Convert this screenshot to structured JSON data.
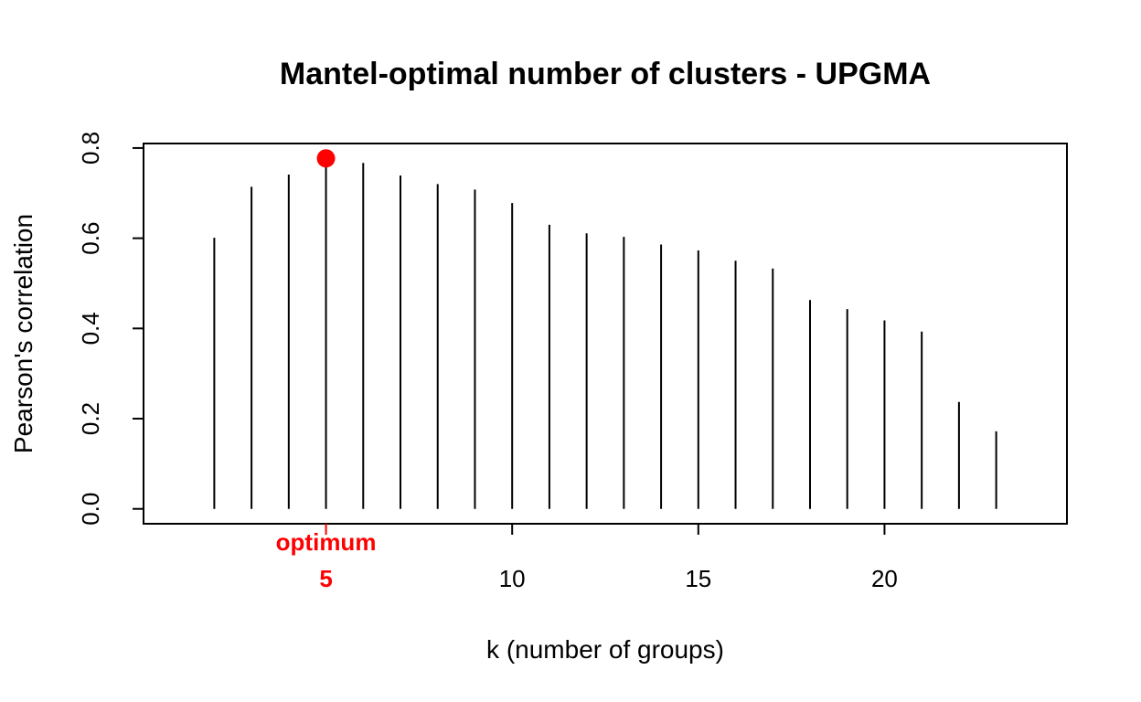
{
  "chart_data": {
    "type": "bar",
    "style": "vertical lines (histogram-type)",
    "title": "Mantel-optimal number of clusters - UPGMA",
    "xlabel": "k (number of groups)",
    "ylabel": "Pearson's correlation",
    "x": [
      1,
      2,
      3,
      4,
      5,
      6,
      7,
      8,
      9,
      10,
      11,
      12,
      13,
      14,
      15,
      16,
      17,
      18,
      19,
      20,
      21,
      22,
      23,
      24
    ],
    "values": [
      0.0,
      0.601,
      0.714,
      0.741,
      0.777,
      0.767,
      0.739,
      0.72,
      0.708,
      0.678,
      0.63,
      0.611,
      0.603,
      0.586,
      0.573,
      0.55,
      0.533,
      0.463,
      0.443,
      0.418,
      0.393,
      0.237,
      0.172,
      0.0
    ],
    "xlim": [
      0.1,
      24.9
    ],
    "ylim": [
      -0.033,
      0.81
    ],
    "x_ticks": [
      10,
      15,
      20
    ],
    "y_ticks": [
      0.0,
      0.2,
      0.4,
      0.6,
      0.8
    ],
    "y_tick_labels": [
      "0.0",
      "0.2",
      "0.4",
      "0.6",
      "0.8"
    ],
    "optimum": {
      "k": 5,
      "value": 0.777,
      "label": "optimum",
      "k_label": "5",
      "color": "#ff0000"
    },
    "grid": false,
    "legend": "none"
  }
}
